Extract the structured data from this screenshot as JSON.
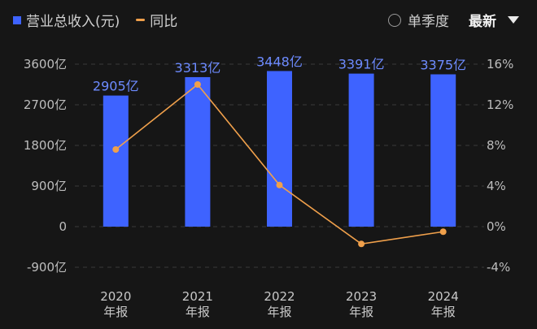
{
  "legend": {
    "bar_series": "营业总收入(元)",
    "line_series": "同比"
  },
  "controls": {
    "mode": "单季度",
    "sort": "最新",
    "dropdown_icon": "caret-down-icon"
  },
  "colors": {
    "bar": "#3e63ff",
    "line": "#f0a04b",
    "label": "#6d8bff",
    "background": "#161616"
  },
  "chart_data": {
    "type": "bar",
    "categories": [
      "2020\n年报",
      "2021\n年报",
      "2022\n年报",
      "2023\n年报",
      "2024\n年报"
    ],
    "series": [
      {
        "name": "营业总收入(元)",
        "type": "bar",
        "axis": "left",
        "values": [
          2905,
          3313,
          3448,
          3391,
          3375
        ],
        "labels": [
          "2905亿",
          "3313亿",
          "3448亿",
          "3391亿",
          "3375亿"
        ]
      },
      {
        "name": "同比",
        "type": "line",
        "axis": "right",
        "values": [
          7.6,
          14.0,
          4.1,
          -1.7,
          -0.5
        ]
      }
    ],
    "y_left": {
      "min": -900,
      "max": 3600,
      "ticks": [
        -900,
        0,
        900,
        1800,
        2700,
        3600
      ],
      "tick_labels": [
        "-900亿",
        "0",
        "900亿",
        "1800亿",
        "2700亿",
        "3600亿"
      ]
    },
    "y_right": {
      "min": -4,
      "max": 16,
      "ticks": [
        -4,
        0,
        4,
        8,
        12,
        16
      ],
      "tick_labels": [
        "-4%",
        "0%",
        "4%",
        "8%",
        "12%",
        "16%"
      ]
    },
    "grid": true
  }
}
